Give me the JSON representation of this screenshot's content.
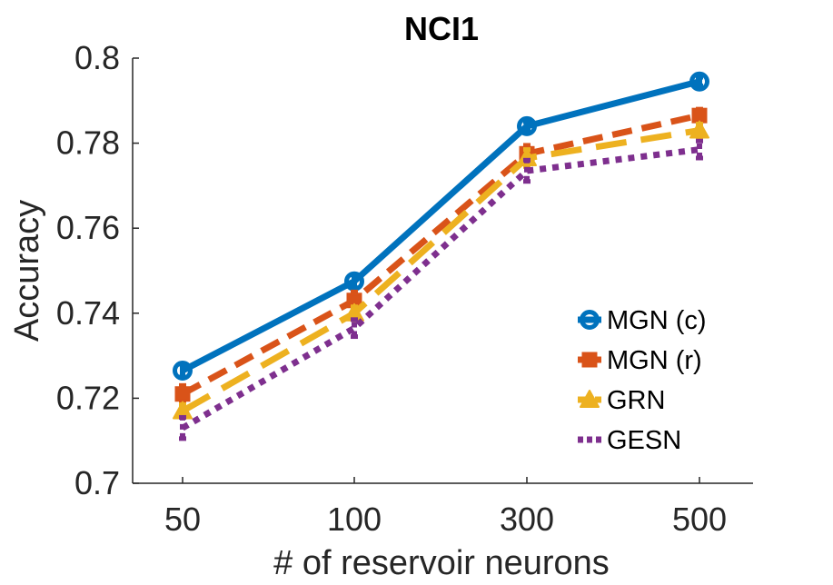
{
  "chart_data": {
    "type": "line",
    "title": "NCI1",
    "xlabel": "# of reservoir neurons",
    "ylabel": "Accuracy",
    "categories": [
      "50",
      "100",
      "300",
      "500"
    ],
    "ylim": [
      0.7,
      0.8
    ],
    "yticks": [
      0.7,
      0.72,
      0.74,
      0.76,
      0.78,
      0.8
    ],
    "ytick_labels": [
      "0.7",
      "0.72",
      "0.74",
      "0.76",
      "0.78",
      "0.8"
    ],
    "grid": false,
    "legend_position": "bottom-right",
    "series": [
      {
        "name": "MGN (c)",
        "color": "#0072BD",
        "line_style": "solid",
        "marker": "circle",
        "values": [
          0.7265,
          0.7475,
          0.784,
          0.7945
        ],
        "errors": [
          0.0015,
          0.0015,
          0.001,
          0.001
        ]
      },
      {
        "name": "MGN (r)",
        "color": "#D95319",
        "line_style": "dashed",
        "marker": "square",
        "values": [
          0.721,
          0.743,
          0.7775,
          0.7865
        ],
        "errors": [
          0.002,
          0.002,
          0.002,
          0.0015
        ]
      },
      {
        "name": "GRN",
        "color": "#EDB120",
        "line_style": "long-dashed",
        "marker": "triangle",
        "values": [
          0.717,
          0.74,
          0.7765,
          0.783
        ],
        "errors": [
          0.0015,
          0.0015,
          0.002,
          0.0015
        ]
      },
      {
        "name": "GESN",
        "color": "#7E2F8E",
        "line_style": "dotted",
        "marker": "none",
        "values": [
          0.713,
          0.7365,
          0.7735,
          0.7785
        ],
        "errors": [
          0.0025,
          0.002,
          0.0025,
          0.002
        ]
      }
    ]
  }
}
